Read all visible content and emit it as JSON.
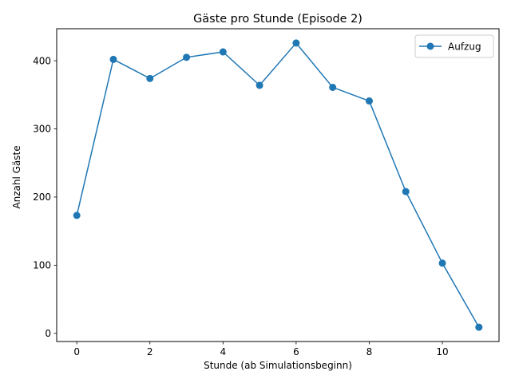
{
  "chart_data": {
    "type": "line",
    "title": "Gäste pro Stunde (Episode 2)",
    "xlabel": "Stunde (ab Simulationsbeginn)",
    "ylabel": "Anzahl Gäste",
    "xlim": [
      -0.55,
      11.55
    ],
    "ylim": [
      -12,
      447
    ],
    "xticks": [
      0,
      2,
      4,
      6,
      8,
      10
    ],
    "yticks": [
      0,
      100,
      200,
      300,
      400
    ],
    "grid": false,
    "legend_position": "top-right",
    "series": [
      {
        "name": "Aufzug",
        "color": "#1f77b4",
        "marker": "circle",
        "x": [
          0,
          1,
          2,
          3,
          4,
          5,
          6,
          7,
          8,
          9,
          10,
          11
        ],
        "y": [
          173,
          402,
          374,
          405,
          413,
          364,
          426,
          361,
          341,
          208,
          103,
          9
        ]
      }
    ]
  }
}
